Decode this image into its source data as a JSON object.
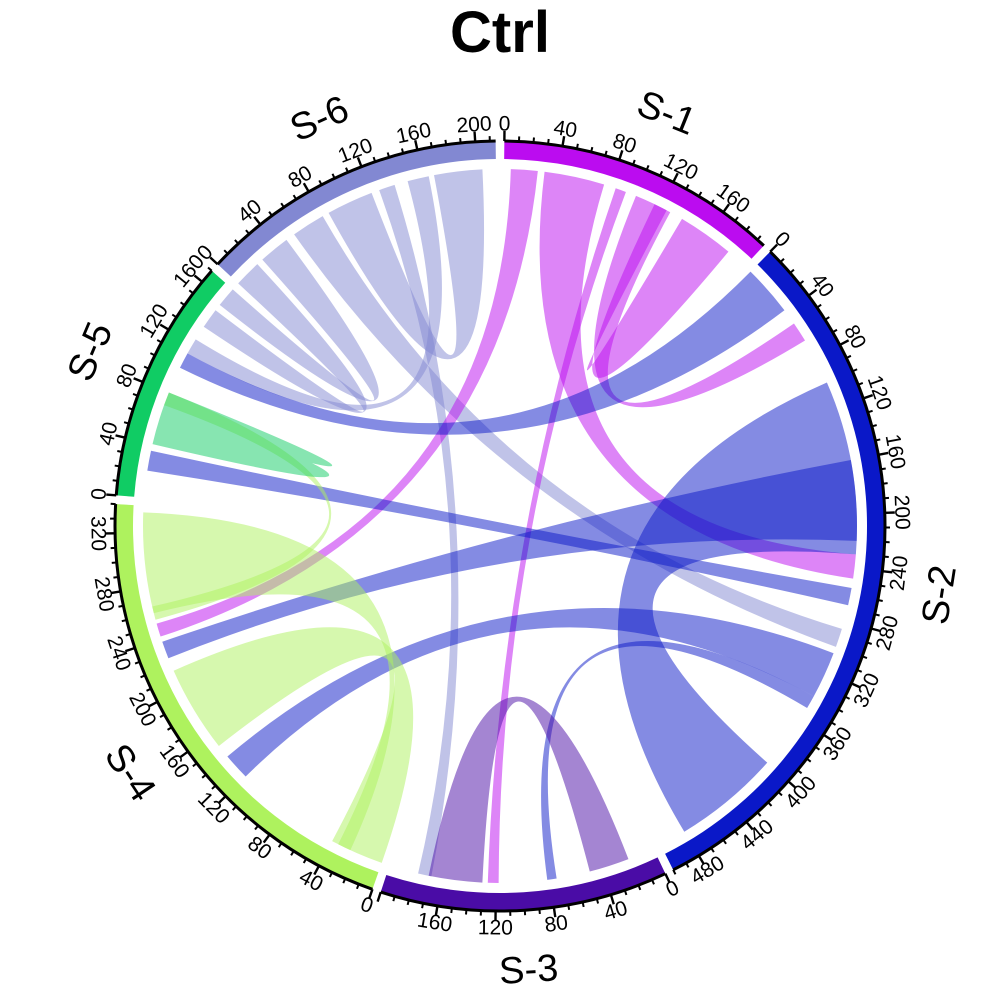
{
  "chart_data": {
    "type": "chord",
    "title": "Ctrl",
    "sectors": [
      {
        "name": "S-1",
        "size": 196,
        "color": "#bb0cf0",
        "tick_labels": [
          "0",
          "40",
          "80",
          "120",
          "160"
        ]
      },
      {
        "name": "S-2",
        "size": 500,
        "color": "#0a18c8",
        "tick_labels": [
          "0",
          "40",
          "80",
          "120",
          "160",
          "200",
          "240",
          "280",
          "320",
          "360",
          "400",
          "440",
          "480"
        ]
      },
      {
        "name": "S-3",
        "size": 200,
        "color": "#4a0ca6",
        "tick_labels": [
          "0",
          "40",
          "80",
          "120",
          "160"
        ]
      },
      {
        "name": "S-4",
        "size": 340,
        "color": "#aef25e",
        "tick_labels": [
          "0",
          "40",
          "80",
          "120",
          "160",
          "200",
          "240",
          "280",
          "320"
        ]
      },
      {
        "name": "S-5",
        "size": 170,
        "color": "#10cc64",
        "tick_labels": [
          "0",
          "40",
          "80",
          "120",
          "160"
        ]
      },
      {
        "name": "S-6",
        "size": 214,
        "color": "#8288d2",
        "tick_labels": [
          "0",
          "40",
          "80",
          "120",
          "160",
          "200"
        ]
      }
    ],
    "links": [
      {
        "from": "S-6",
        "from_range": [
          0,
          20
        ],
        "to": "S-5",
        "to_range": [
          135,
          150
        ]
      },
      {
        "from": "S-6",
        "from_range": [
          25,
          48
        ],
        "to": "S-5",
        "to_range": [
          155,
          170
        ]
      },
      {
        "from": "S-6",
        "from_range": [
          55,
          80
        ],
        "to": "S-2",
        "to_range": [
          286,
          300
        ]
      },
      {
        "from": "S-6",
        "from_range": [
          85,
          120
        ],
        "to": "S-6",
        "to_range": [
          168,
          204
        ]
      },
      {
        "from": "S-6",
        "from_range": [
          126,
          138
        ],
        "to": "S-3",
        "to_range": [
          168,
          178
        ]
      },
      {
        "from": "S-6",
        "from_range": [
          148,
          164
        ],
        "to": "S-5",
        "to_range": [
          112,
          124
        ]
      },
      {
        "from": "S-1",
        "from_range": [
          5,
          25
        ],
        "to": "S-4",
        "to_range": [
          242,
          252
        ]
      },
      {
        "from": "S-1",
        "from_range": [
          30,
          75
        ],
        "to": "S-2",
        "to_range": [
          230,
          248
        ]
      },
      {
        "from": "S-1",
        "from_range": [
          84,
          92
        ],
        "to": "S-3",
        "to_range": [
          118,
          126
        ]
      },
      {
        "from": "S-1",
        "from_range": [
          100,
          128
        ],
        "to": "S-2",
        "to_range": [
          50,
          65
        ]
      },
      {
        "from": "S-1",
        "from_range": [
          138,
          180
        ],
        "to": "S-1",
        "to_range": [
          115,
          125
        ]
      },
      {
        "from": "S-2",
        "from_range": [
          0,
          38
        ],
        "to": "S-5",
        "to_range": [
          100,
          112
        ]
      },
      {
        "from": "S-2",
        "from_range": [
          100,
          230
        ],
        "to": "S-2",
        "to_range": [
          400,
          480
        ]
      },
      {
        "from": "S-2",
        "from_range": [
          160,
          220
        ],
        "to": "S-4",
        "to_range": [
          225,
          238
        ]
      },
      {
        "from": "S-2",
        "from_range": [
          255,
          268
        ],
        "to": "S-5",
        "to_range": [
          20,
          35
        ]
      },
      {
        "from": "S-2",
        "from_range": [
          305,
          340
        ],
        "to": "S-4",
        "to_range": [
          120,
          140
        ]
      },
      {
        "from": "S-2",
        "from_range": [
          340,
          350
        ],
        "to": "S-3",
        "to_range": [
          75,
          82
        ]
      },
      {
        "from": "S-3",
        "from_range": [
          20,
          50
        ],
        "to": "S-3",
        "to_range": [
          130,
          170
        ]
      },
      {
        "from": "S-4",
        "from_range": [
          150,
          215
        ],
        "to": "S-4",
        "to_range": [
          0,
          40
        ]
      },
      {
        "from": "S-4",
        "from_range": [
          260,
          335
        ],
        "to": "S-4",
        "to_range": [
          25,
          35
        ]
      },
      {
        "from": "S-4",
        "from_range": [
          255,
          265
        ],
        "to": "S-5",
        "to_range": [
          70,
          80
        ]
      },
      {
        "from": "S-5",
        "from_range": [
          40,
          80
        ],
        "to": "S-5",
        "to_range": [
          60,
          70
        ]
      }
    ]
  }
}
